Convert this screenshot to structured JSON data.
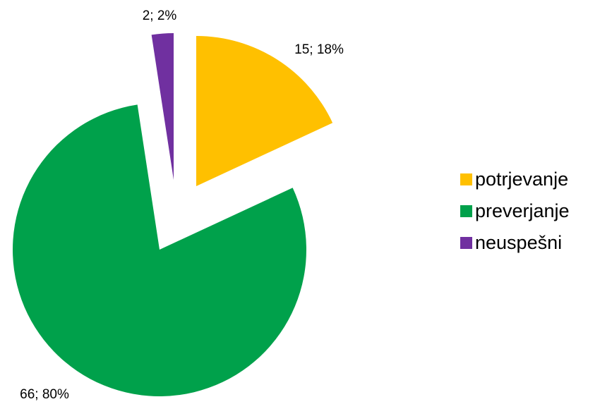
{
  "chart_data": {
    "type": "pie",
    "slices": [
      {
        "name": "potrjevanje",
        "value": 15,
        "percent": 18,
        "label": "15; 18%",
        "color": "#FFC000"
      },
      {
        "name": "preverjanje",
        "value": 66,
        "percent": 80,
        "label": "66; 80%",
        "color": "#00A14B"
      },
      {
        "name": "neuspešni",
        "value": 2,
        "percent": 2,
        "label": "2; 2%",
        "color": "#7030A0"
      }
    ],
    "legend": {
      "position": "right"
    }
  }
}
